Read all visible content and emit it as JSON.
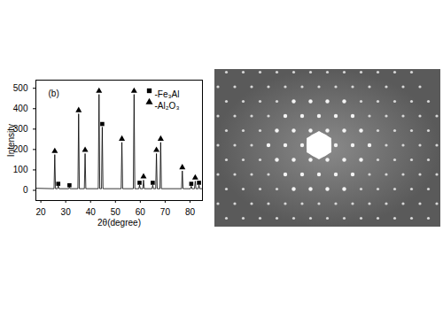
{
  "chart_data": {
    "type": "line",
    "annotations": [
      "(b)"
    ],
    "x_label": "2θ(degree)",
    "y_label": "Intensity",
    "color": "#000000",
    "x": [
      18,
      25.3,
      25.6,
      25.9,
      26.7,
      27,
      27.3,
      31.2,
      31.5,
      31.8,
      34.9,
      35.2,
      35.5,
      37.5,
      37.8,
      38.1,
      43.1,
      43.4,
      43.7,
      44.4,
      44.7,
      45,
      52.3,
      52.6,
      52.9,
      57.2,
      57.5,
      57.8,
      59.4,
      59.7,
      60,
      61,
      61.3,
      61.6,
      64.7,
      65,
      65.3,
      66.2,
      66.5,
      66.8,
      67.9,
      68.2,
      68.5,
      76.6,
      76.9,
      77.2,
      80.2,
      80.5,
      80.8,
      81.8,
      82.1,
      82.4,
      83.3,
      83.6,
      83.9,
      85
    ],
    "values": [
      10,
      8,
      175,
      8,
      8,
      22,
      8,
      8,
      15,
      8,
      8,
      375,
      8,
      8,
      180,
      8,
      8,
      470,
      8,
      8,
      310,
      8,
      8,
      235,
      8,
      8,
      470,
      8,
      8,
      25,
      8,
      8,
      50,
      8,
      8,
      25,
      8,
      8,
      180,
      8,
      8,
      235,
      8,
      8,
      95,
      8,
      8,
      20,
      8,
      8,
      45,
      8,
      8,
      25,
      8,
      8
    ],
    "series": [
      {
        "name": "-Fe₃Al",
        "type": "scatter",
        "marker": "square",
        "color": "#000000",
        "x": [
          27,
          31.5,
          44.7,
          59.7,
          65,
          80.5,
          83.6
        ],
        "values": [
          32,
          25,
          325,
          37,
          37,
          32,
          37
        ]
      },
      {
        "name": "-Al₂O₃",
        "type": "scatter",
        "marker": "triangle",
        "color": "#000000",
        "x": [
          25.6,
          35.2,
          37.8,
          43.4,
          52.6,
          57.5,
          61.3,
          66.5,
          68.2,
          76.9,
          82.1
        ],
        "values": [
          192,
          392,
          197,
          487,
          252,
          487,
          67,
          197,
          252,
          112,
          62
        ]
      }
    ],
    "legend": "top-right",
    "grid": false,
    "xlim": [
      18,
      85
    ],
    "xticks": [
      20,
      30,
      40,
      50,
      60,
      70,
      80
    ],
    "ylim": [
      -50,
      540
    ],
    "yticks": [
      0,
      100,
      200,
      300,
      400,
      500
    ]
  }
}
